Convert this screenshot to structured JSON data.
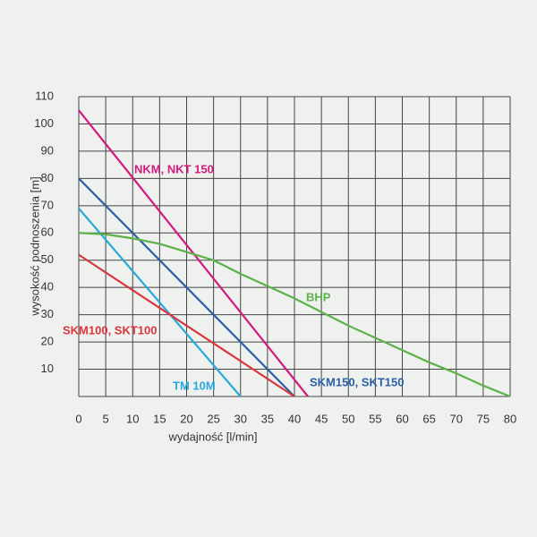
{
  "chart_data": {
    "type": "line",
    "xlabel": "wydajność [l/min]",
    "ylabel": "wysokość podnoszenia [m]",
    "xlim": [
      0,
      80
    ],
    "xticks": [
      0,
      5,
      10,
      15,
      20,
      25,
      30,
      35,
      40,
      45,
      50,
      55,
      60,
      65,
      70,
      75,
      80
    ],
    "ylim": [
      0,
      110
    ],
    "yticks": [
      10,
      20,
      30,
      40,
      50,
      60,
      70,
      80,
      90,
      100,
      110
    ],
    "grid": true,
    "series": [
      {
        "name": "NKM, NKT 150",
        "color": "#d4197f",
        "x": [
          0,
          42.5
        ],
        "values": [
          105,
          0
        ]
      },
      {
        "name": "SKM150, SKT150",
        "color": "#2a5fa8",
        "x": [
          0,
          40
        ],
        "values": [
          80,
          0
        ]
      },
      {
        "name": "TM 10M",
        "color": "#29a8dc",
        "x": [
          0,
          30
        ],
        "values": [
          69,
          0
        ]
      },
      {
        "name": "SKM100, SKT100",
        "color": "#d9363e",
        "x": [
          0,
          40
        ],
        "values": [
          52,
          0
        ]
      },
      {
        "name": "BHP",
        "color": "#5cb14b",
        "x": [
          0,
          5,
          10,
          15,
          20,
          25,
          30,
          35,
          40,
          45,
          50,
          55,
          60,
          65,
          70,
          75,
          80
        ],
        "values": [
          60,
          59.5,
          58,
          56,
          53,
          50,
          45,
          40.5,
          36,
          31,
          26,
          21.5,
          17,
          12.5,
          8.5,
          4,
          0
        ]
      }
    ]
  }
}
